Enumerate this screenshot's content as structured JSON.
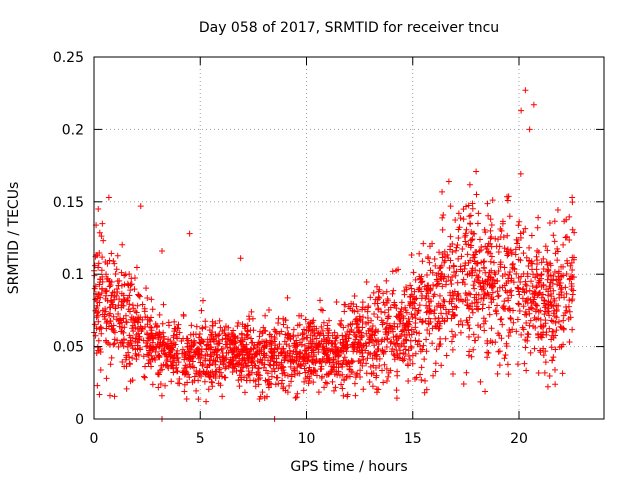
{
  "chart_data": {
    "type": "scatter",
    "title": "Day 058 of 2017, SRMTID for receiver tncu",
    "xlabel": "GPS time / hours",
    "ylabel": "SRMTID / TECUs",
    "xlim": [
      0,
      24
    ],
    "ylim": [
      0,
      0.25
    ],
    "x_ticks": [
      0,
      5,
      10,
      15,
      20
    ],
    "x_tick_labels": [
      "0",
      "5",
      "10",
      "15",
      "20"
    ],
    "y_ticks": [
      0,
      0.05,
      0.1,
      0.15,
      0.2,
      0.25
    ],
    "y_tick_labels": [
      "0",
      "0.05",
      "0.1",
      "0.15",
      "0.2",
      "0.25"
    ],
    "grid": true,
    "marker": "+",
    "color": "#ff0000",
    "series": [
      {
        "name": "SRMTID",
        "trend_profile": [
          [
            0.0,
            0.085
          ],
          [
            1.0,
            0.075
          ],
          [
            2.0,
            0.062
          ],
          [
            3.0,
            0.05
          ],
          [
            4.0,
            0.043
          ],
          [
            5.0,
            0.043
          ],
          [
            6.0,
            0.043
          ],
          [
            7.0,
            0.044
          ],
          [
            8.0,
            0.042
          ],
          [
            9.0,
            0.043
          ],
          [
            10.0,
            0.045
          ],
          [
            11.0,
            0.047
          ],
          [
            12.0,
            0.049
          ],
          [
            13.0,
            0.055
          ],
          [
            14.0,
            0.062
          ],
          [
            15.0,
            0.068
          ],
          [
            16.0,
            0.08
          ],
          [
            17.0,
            0.095
          ],
          [
            18.0,
            0.098
          ],
          [
            19.0,
            0.088
          ],
          [
            20.0,
            0.095
          ],
          [
            21.0,
            0.075
          ],
          [
            22.0,
            0.085
          ],
          [
            22.6,
            0.095
          ]
        ],
        "notable_points": [
          {
            "x": 0.2,
            "y": 0.145
          },
          {
            "x": 0.7,
            "y": 0.153
          },
          {
            "x": 2.2,
            "y": 0.147
          },
          {
            "x": 3.2,
            "y": 0.0
          },
          {
            "x": 3.2,
            "y": 0.116
          },
          {
            "x": 4.5,
            "y": 0.128
          },
          {
            "x": 6.9,
            "y": 0.111
          },
          {
            "x": 8.5,
            "y": 0.0
          },
          {
            "x": 16.7,
            "y": 0.164
          },
          {
            "x": 18.0,
            "y": 0.155
          },
          {
            "x": 19.5,
            "y": 0.031
          },
          {
            "x": 20.1,
            "y": 0.213
          },
          {
            "x": 20.3,
            "y": 0.227
          },
          {
            "x": 20.5,
            "y": 0.2
          },
          {
            "x": 20.7,
            "y": 0.217
          },
          {
            "x": 21.7,
            "y": 0.024
          },
          {
            "x": 22.5,
            "y": 0.153
          }
        ]
      }
    ]
  }
}
